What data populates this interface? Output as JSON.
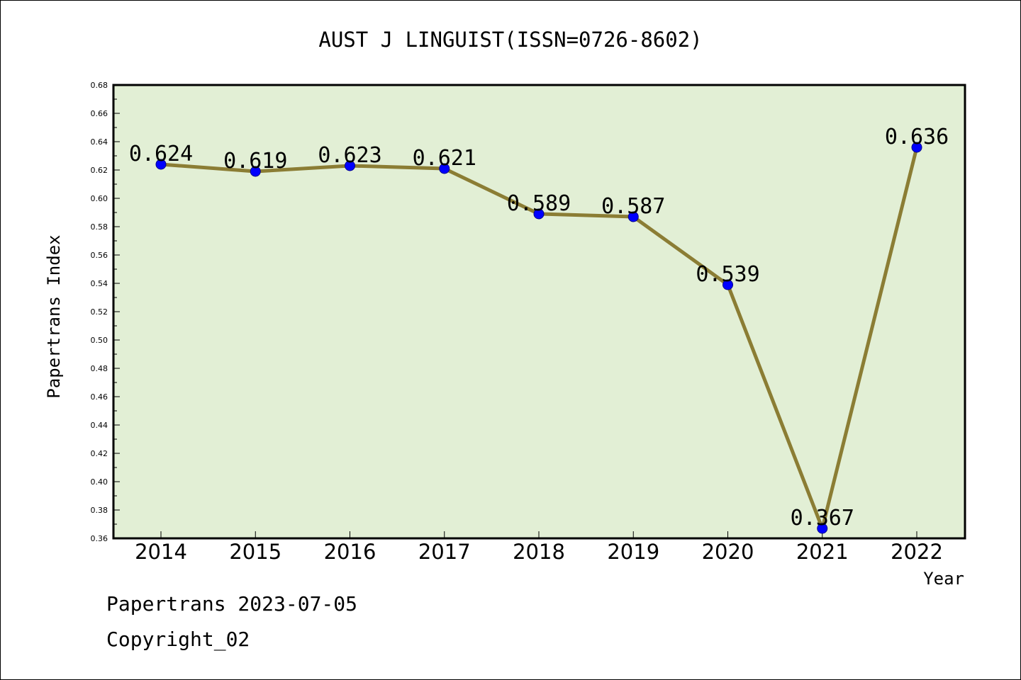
{
  "chart_data": {
    "type": "line",
    "title": "AUST J LINGUIST(ISSN=0726-8602)",
    "xlabel": "Year",
    "ylabel": "Papertrans Index",
    "categories": [
      "2014",
      "2015",
      "2016",
      "2017",
      "2018",
      "2019",
      "2020",
      "2021",
      "2022"
    ],
    "series": [
      {
        "values": [
          0.624,
          0.619,
          0.623,
          0.621,
          0.589,
          0.587,
          0.539,
          0.367,
          0.636
        ],
        "labels": [
          "0.624",
          "0.619",
          "0.623",
          "0.621",
          "0.589",
          "0.587",
          "0.539",
          "0.367",
          "0.636"
        ]
      }
    ],
    "ylim": [
      0.36,
      0.68
    ],
    "yticks": [
      "0.36",
      "0.38",
      "0.40",
      "0.42",
      "0.44",
      "0.46",
      "0.48",
      "0.50",
      "0.52",
      "0.54",
      "0.56",
      "0.58",
      "0.60",
      "0.62",
      "0.64",
      "0.66",
      "0.68"
    ],
    "grid": false,
    "legend": "none",
    "colors": {
      "plot_background": "#e2efd5",
      "line": "#8b7d34",
      "marker": "#0000ff"
    }
  },
  "footer": {
    "line1": "Papertrans 2023-07-05",
    "line2": "Copyright_02"
  }
}
